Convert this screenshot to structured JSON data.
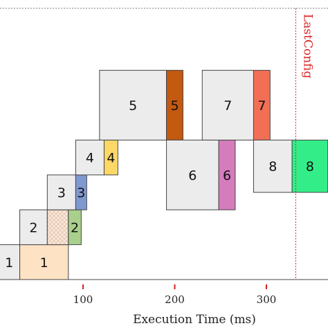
{
  "chart_data": {
    "type": "gantt",
    "xlabel": "Execution Time (ms)",
    "xticks": [
      100,
      200,
      300
    ],
    "xlim": [
      8,
      367
    ],
    "row_levels": [
      "row1",
      "row2",
      "row3",
      "row4",
      "row5",
      "row6",
      "row7",
      "row8"
    ],
    "blocks": [
      {
        "label": "1",
        "start": 8,
        "end": 31,
        "row_top": 2,
        "row_bottom": 0,
        "color": "#ececec",
        "pattern": "none"
      },
      {
        "label": "1",
        "start": 31,
        "end": 84,
        "row_top": 2,
        "row_bottom": 0,
        "color": "#fde2c4",
        "pattern": "none"
      },
      {
        "label": "2",
        "start": 31,
        "end": 61,
        "row_top": 4,
        "row_bottom": 2,
        "color": "#ececec",
        "pattern": "none"
      },
      {
        "label": "",
        "start": 61,
        "end": 84,
        "row_top": 4,
        "row_bottom": 2,
        "color": "#fbe9dc",
        "pattern": "crosshatch"
      },
      {
        "label": "2",
        "start": 84,
        "end": 98,
        "row_top": 4,
        "row_bottom": 2,
        "color": "#a9cf8c",
        "pattern": "none"
      },
      {
        "label": "3",
        "start": 61,
        "end": 92,
        "row_top": 6,
        "row_bottom": 4,
        "color": "#ececec",
        "pattern": "none"
      },
      {
        "label": "3",
        "start": 92,
        "end": 104,
        "row_top": 6,
        "row_bottom": 4,
        "color": "#7f99d0",
        "pattern": "none"
      },
      {
        "label": "4",
        "start": 92,
        "end": 123,
        "row_top": 8,
        "row_bottom": 6,
        "color": "#ececec",
        "pattern": "none"
      },
      {
        "label": "4",
        "start": 123,
        "end": 138,
        "row_top": 8,
        "row_bottom": 6,
        "color": "#fdd867",
        "pattern": "none"
      },
      {
        "label": "5",
        "start": 118,
        "end": 191,
        "row_top": 12,
        "row_bottom": 8,
        "color": "#ececec",
        "pattern": "none"
      },
      {
        "label": "5",
        "start": 191,
        "end": 209,
        "row_top": 12,
        "row_bottom": 8,
        "color": "#c45910",
        "pattern": "none"
      },
      {
        "label": "6",
        "start": 191,
        "end": 248,
        "row_top": 8,
        "row_bottom": 4,
        "color": "#ececec",
        "pattern": "none"
      },
      {
        "label": "6",
        "start": 248,
        "end": 266,
        "row_top": 8,
        "row_bottom": 4,
        "color": "#d57cbd",
        "pattern": "none"
      },
      {
        "label": "7",
        "start": 230,
        "end": 286,
        "row_top": 12,
        "row_bottom": 8,
        "color": "#ececec",
        "pattern": "none"
      },
      {
        "label": "7",
        "start": 286,
        "end": 304,
        "row_top": 12,
        "row_bottom": 8,
        "color": "#f26f55",
        "pattern": "none"
      },
      {
        "label": "8",
        "start": 286,
        "end": 328,
        "row_top": 8,
        "row_bottom": 5,
        "color": "#ececec",
        "pattern": "none"
      },
      {
        "label": "8",
        "start": 328,
        "end": 367,
        "row_top": 8,
        "row_bottom": 5,
        "color": "#33ee88",
        "pattern": "none"
      }
    ],
    "marker": {
      "label": "LastConfig",
      "x": 332,
      "color": "#d22222"
    },
    "grid": false
  }
}
